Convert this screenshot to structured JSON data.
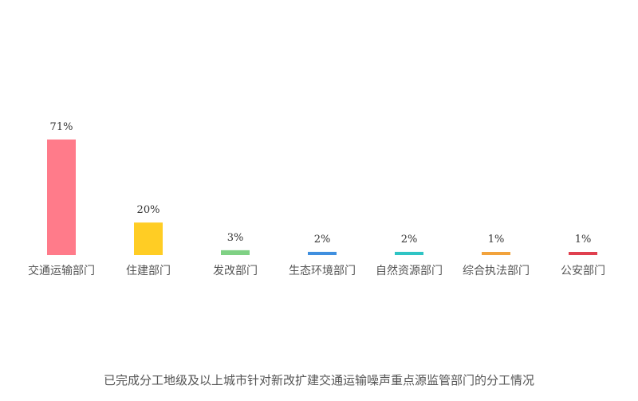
{
  "caption": "已完成分工地级及以上城市针对新改扩建交通运输噪声重点源监管部门的分工情况",
  "chart_data": {
    "type": "bar",
    "categories": [
      "交通运输部门",
      "住建部门",
      "发改部门",
      "生态环境部门",
      "自然资源部门",
      "综合执法部门",
      "公安部门"
    ],
    "values": [
      71,
      20,
      3,
      2,
      2,
      1,
      1
    ],
    "value_labels": [
      "71%",
      "20%",
      "3%",
      "2%",
      "2%",
      "1%",
      "1%"
    ],
    "colors": [
      "#ff7b8a",
      "#ffcd24",
      "#7fd184",
      "#3f8fdf",
      "#2fc4c4",
      "#f2a33c",
      "#e0404f"
    ],
    "unit": "%",
    "ylim": [
      0,
      71
    ],
    "grid": false,
    "legend": "none"
  }
}
